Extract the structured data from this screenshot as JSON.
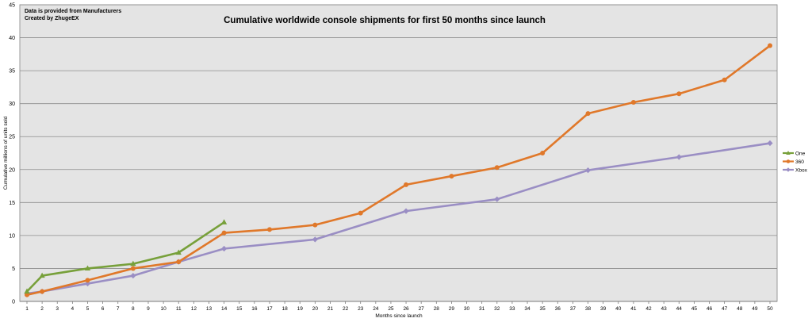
{
  "chart_data": {
    "type": "line",
    "title": "Cumulative worldwide console shipments for first 50 months since launch",
    "notes": [
      "Data is provided  from Manufacturers",
      "Created  by ZhugeEX"
    ],
    "xlabel": "Months since launch",
    "ylabel": "Cumulative millions of units sold",
    "xlim": [
      1,
      50
    ],
    "ylim": [
      0,
      45
    ],
    "yticks": [
      0,
      5,
      10,
      15,
      20,
      25,
      30,
      35,
      40,
      45
    ],
    "xticks": [
      1,
      2,
      3,
      4,
      5,
      6,
      7,
      8,
      9,
      10,
      11,
      12,
      13,
      14,
      15,
      16,
      17,
      18,
      19,
      20,
      21,
      22,
      23,
      24,
      25,
      26,
      27,
      28,
      29,
      30,
      31,
      32,
      33,
      34,
      35,
      36,
      37,
      38,
      39,
      40,
      41,
      42,
      43,
      44,
      45,
      46,
      47,
      48,
      49,
      50
    ],
    "grid": "horizontal",
    "legend_position": "right",
    "series": [
      {
        "name": "One",
        "color": "#77a03a",
        "marker": "triangle",
        "points": [
          [
            1,
            1.5
          ],
          [
            2,
            3.9
          ],
          [
            5,
            5.0
          ],
          [
            8,
            5.7
          ],
          [
            11,
            7.4
          ],
          [
            14,
            12.0
          ]
        ]
      },
      {
        "name": "360",
        "color": "#e0782a",
        "marker": "circle",
        "points": [
          [
            1,
            1.0
          ],
          [
            2,
            1.5
          ],
          [
            5,
            3.2
          ],
          [
            8,
            5.0
          ],
          [
            11,
            6.0
          ],
          [
            14,
            10.4
          ],
          [
            17,
            10.9
          ],
          [
            20,
            11.6
          ],
          [
            23,
            13.4
          ],
          [
            26,
            17.7
          ],
          [
            29,
            19.0
          ],
          [
            32,
            20.3
          ],
          [
            35,
            22.5
          ],
          [
            38,
            28.5
          ],
          [
            41,
            30.2
          ],
          [
            44,
            31.5
          ],
          [
            47,
            33.6
          ],
          [
            50,
            38.8
          ]
        ]
      },
      {
        "name": "Xbox",
        "color": "#9a8ec4",
        "marker": "diamond",
        "points": [
          [
            1,
            1.2
          ],
          [
            2,
            1.5
          ],
          [
            5,
            2.7
          ],
          [
            8,
            3.9
          ],
          [
            11,
            6.0
          ],
          [
            14,
            8.0
          ],
          [
            20,
            9.4
          ],
          [
            26,
            13.7
          ],
          [
            32,
            15.5
          ],
          [
            38,
            19.9
          ],
          [
            44,
            21.9
          ],
          [
            50,
            24.0
          ]
        ]
      }
    ]
  }
}
